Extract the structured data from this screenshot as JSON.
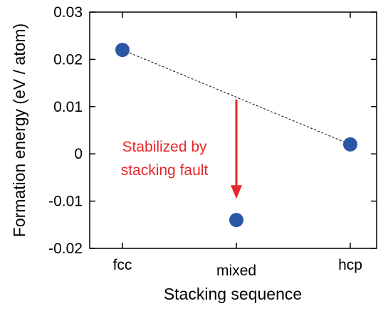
{
  "chart_data": {
    "type": "scatter",
    "categories": [
      "fcc",
      "mixed",
      "hcp"
    ],
    "x": [
      "fcc",
      "mixed",
      "hcp"
    ],
    "series": [
      {
        "values": [
          0.022,
          -0.014,
          0.002
        ]
      }
    ],
    "connector": {
      "from": "fcc",
      "to": "hcp",
      "style": "dashed"
    },
    "xlabel": "Stacking sequence",
    "ylabel": "Formation energy (eV / atom)",
    "ylim": [
      -0.02,
      0.03
    ],
    "yticks": [
      "-0.02",
      "-0.01",
      "0",
      "0.01",
      "0.02",
      "0.03"
    ],
    "grid": false,
    "annotation": {
      "lines": [
        "Stabilized by",
        "stacking fault"
      ],
      "arrow_from": 0.0115,
      "arrow_to": -0.0095,
      "arrow_category": "mixed"
    },
    "colors": {
      "marker": "#2a56a4",
      "annotation": "#e8262b"
    }
  }
}
